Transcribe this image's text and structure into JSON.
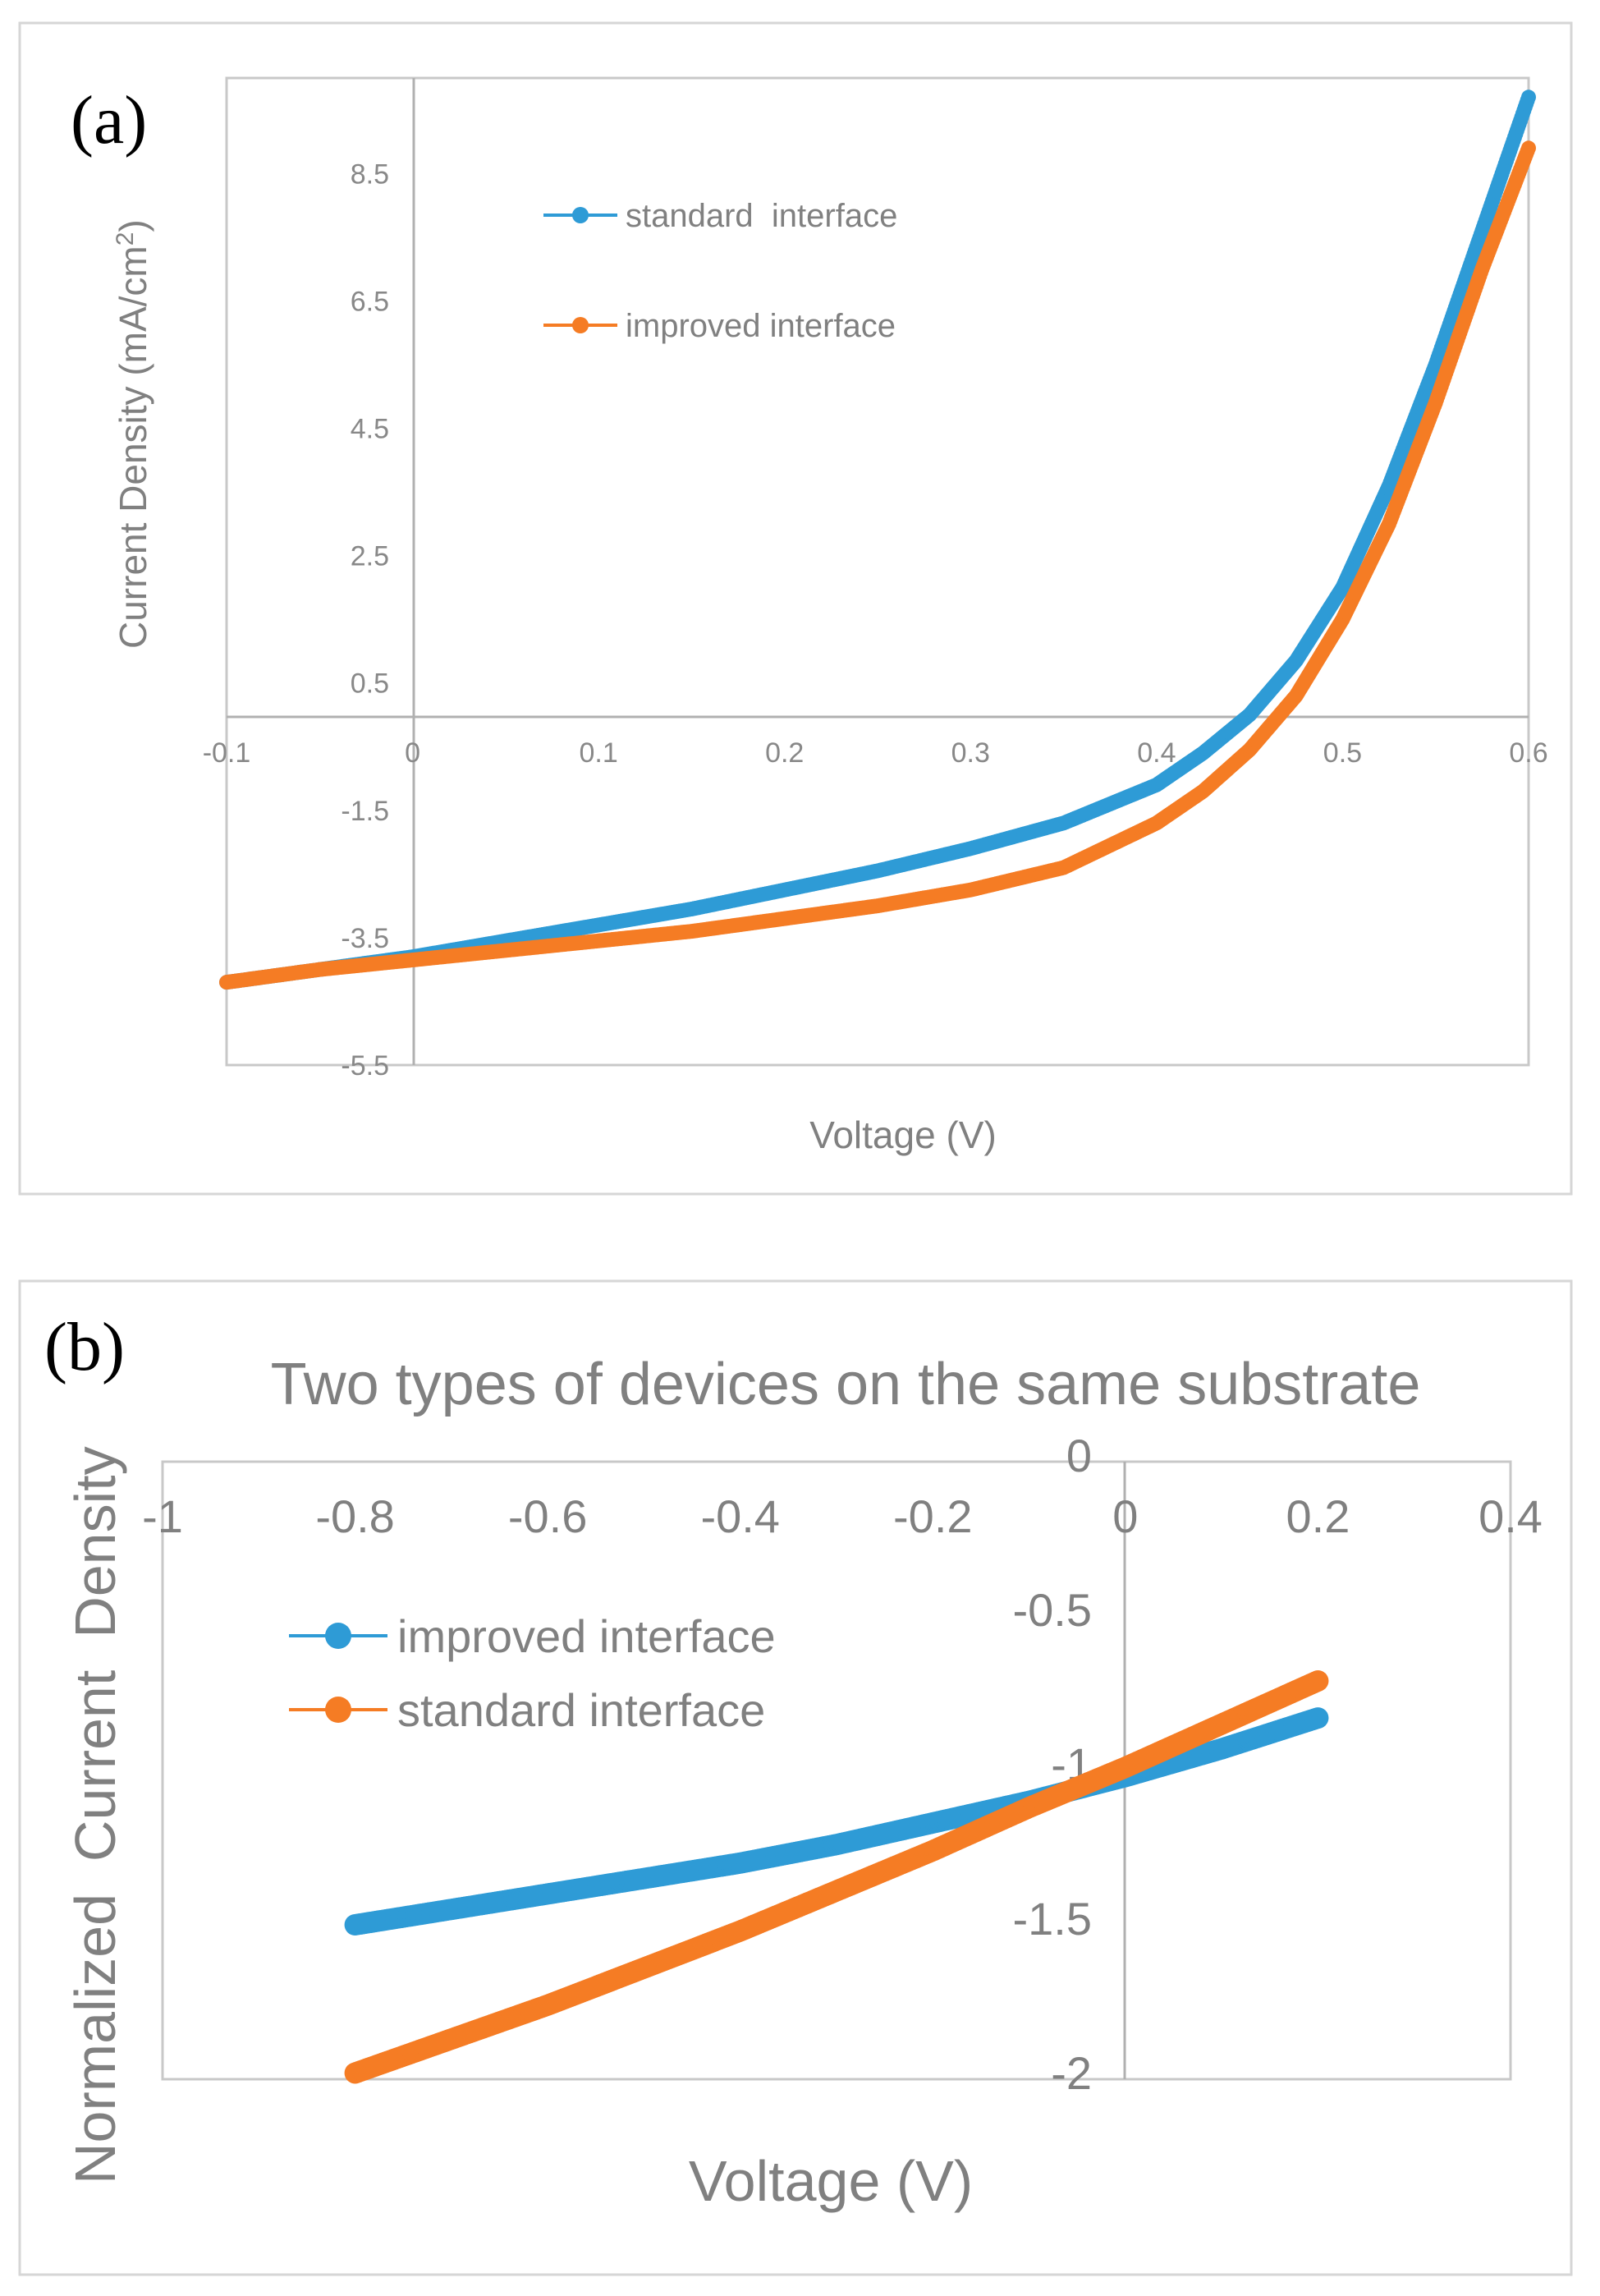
{
  "chart_data": [
    {
      "panel_label": "(a)",
      "type": "scatter",
      "title": "",
      "xlabel": "Voltage (V)",
      "ylabel": "Current Density (mA/cm",
      "ylabel_sup": "2",
      "ylabel_end": ")",
      "xlim": [
        -0.1,
        0.6
      ],
      "ylim": [
        -5.5,
        10
      ],
      "xticks": [
        -0.1,
        0,
        0.1,
        0.2,
        0.3,
        0.4,
        0.5,
        0.6
      ],
      "xtick_labels": [
        "-0.1",
        "0",
        "0.1",
        "0.2",
        "0.3",
        "0.4",
        "0.5",
        "0.6"
      ],
      "yticks": [
        8.5,
        6.5,
        4.5,
        2.5,
        0.5,
        -1.5,
        -3.5,
        -5.5
      ],
      "ytick_labels": [
        "8.5",
        "6.5",
        "4.5",
        "2.5",
        "0.5",
        "-1.5",
        "-3.5",
        "-5.5"
      ],
      "grid": false,
      "legend_position": "top-center",
      "series": [
        {
          "name": "standard  interface",
          "color": "#2e9bd6",
          "x": [
            -0.1,
            -0.05,
            0,
            0.05,
            0.1,
            0.15,
            0.2,
            0.25,
            0.3,
            0.35,
            0.4,
            0.425,
            0.45,
            0.475,
            0.5,
            0.525,
            0.55,
            0.575,
            0.6
          ],
          "y": [
            -4.2,
            -4.0,
            -3.8,
            -3.55,
            -3.3,
            -3.05,
            -2.75,
            -2.45,
            -2.1,
            -1.7,
            -1.1,
            -0.6,
            0.0,
            0.85,
            2.0,
            3.6,
            5.5,
            7.6,
            9.7
          ]
        },
        {
          "name": "improved interface",
          "color": "#f57c24",
          "x": [
            -0.1,
            -0.05,
            0,
            0.05,
            0.1,
            0.15,
            0.2,
            0.25,
            0.3,
            0.35,
            0.4,
            0.425,
            0.45,
            0.475,
            0.5,
            0.525,
            0.55,
            0.575,
            0.6
          ],
          "y": [
            -4.2,
            -4.0,
            -3.85,
            -3.7,
            -3.55,
            -3.4,
            -3.2,
            -3.0,
            -2.75,
            -2.4,
            -1.7,
            -1.2,
            -0.55,
            0.3,
            1.5,
            3.0,
            4.9,
            7.0,
            8.9
          ]
        }
      ]
    },
    {
      "panel_label": "(b)",
      "type": "scatter",
      "title": "Two types of devices on the same substrate",
      "xlabel": "Voltage (V)",
      "ylabel": "Normalized  Current  Density",
      "xlim": [
        -1,
        0.4
      ],
      "ylim": [
        -2,
        0
      ],
      "xticks": [
        -1,
        -0.8,
        -0.6,
        -0.4,
        -0.2,
        0,
        0.2,
        0.4
      ],
      "xtick_labels": [
        "-1",
        "-0.8",
        "-0.6",
        "-0.4",
        "-0.2",
        "0",
        "0.2",
        "0.4"
      ],
      "yticks": [
        0,
        -0.5,
        -1,
        -1.5,
        -2
      ],
      "ytick_labels": [
        "0",
        "-0.5",
        "-1",
        "-1.5",
        "-2"
      ],
      "grid": false,
      "legend_position": "center-left",
      "series": [
        {
          "name": "improved interface",
          "color": "#2e9bd6",
          "x": [
            -0.8,
            -0.7,
            -0.6,
            -0.5,
            -0.4,
            -0.3,
            -0.2,
            -0.1,
            0,
            0.1,
            0.2
          ],
          "y": [
            -1.5,
            -1.45,
            -1.4,
            -1.35,
            -1.3,
            -1.24,
            -1.17,
            -1.1,
            -1.02,
            -0.93,
            -0.83
          ]
        },
        {
          "name": "standard interface",
          "color": "#f57c24",
          "x": [
            -0.8,
            -0.7,
            -0.6,
            -0.5,
            -0.4,
            -0.3,
            -0.2,
            -0.1,
            0,
            0.1,
            0.2
          ],
          "y": [
            -1.98,
            -1.87,
            -1.76,
            -1.64,
            -1.52,
            -1.39,
            -1.26,
            -1.12,
            -0.99,
            -0.85,
            -0.71
          ]
        }
      ]
    }
  ]
}
